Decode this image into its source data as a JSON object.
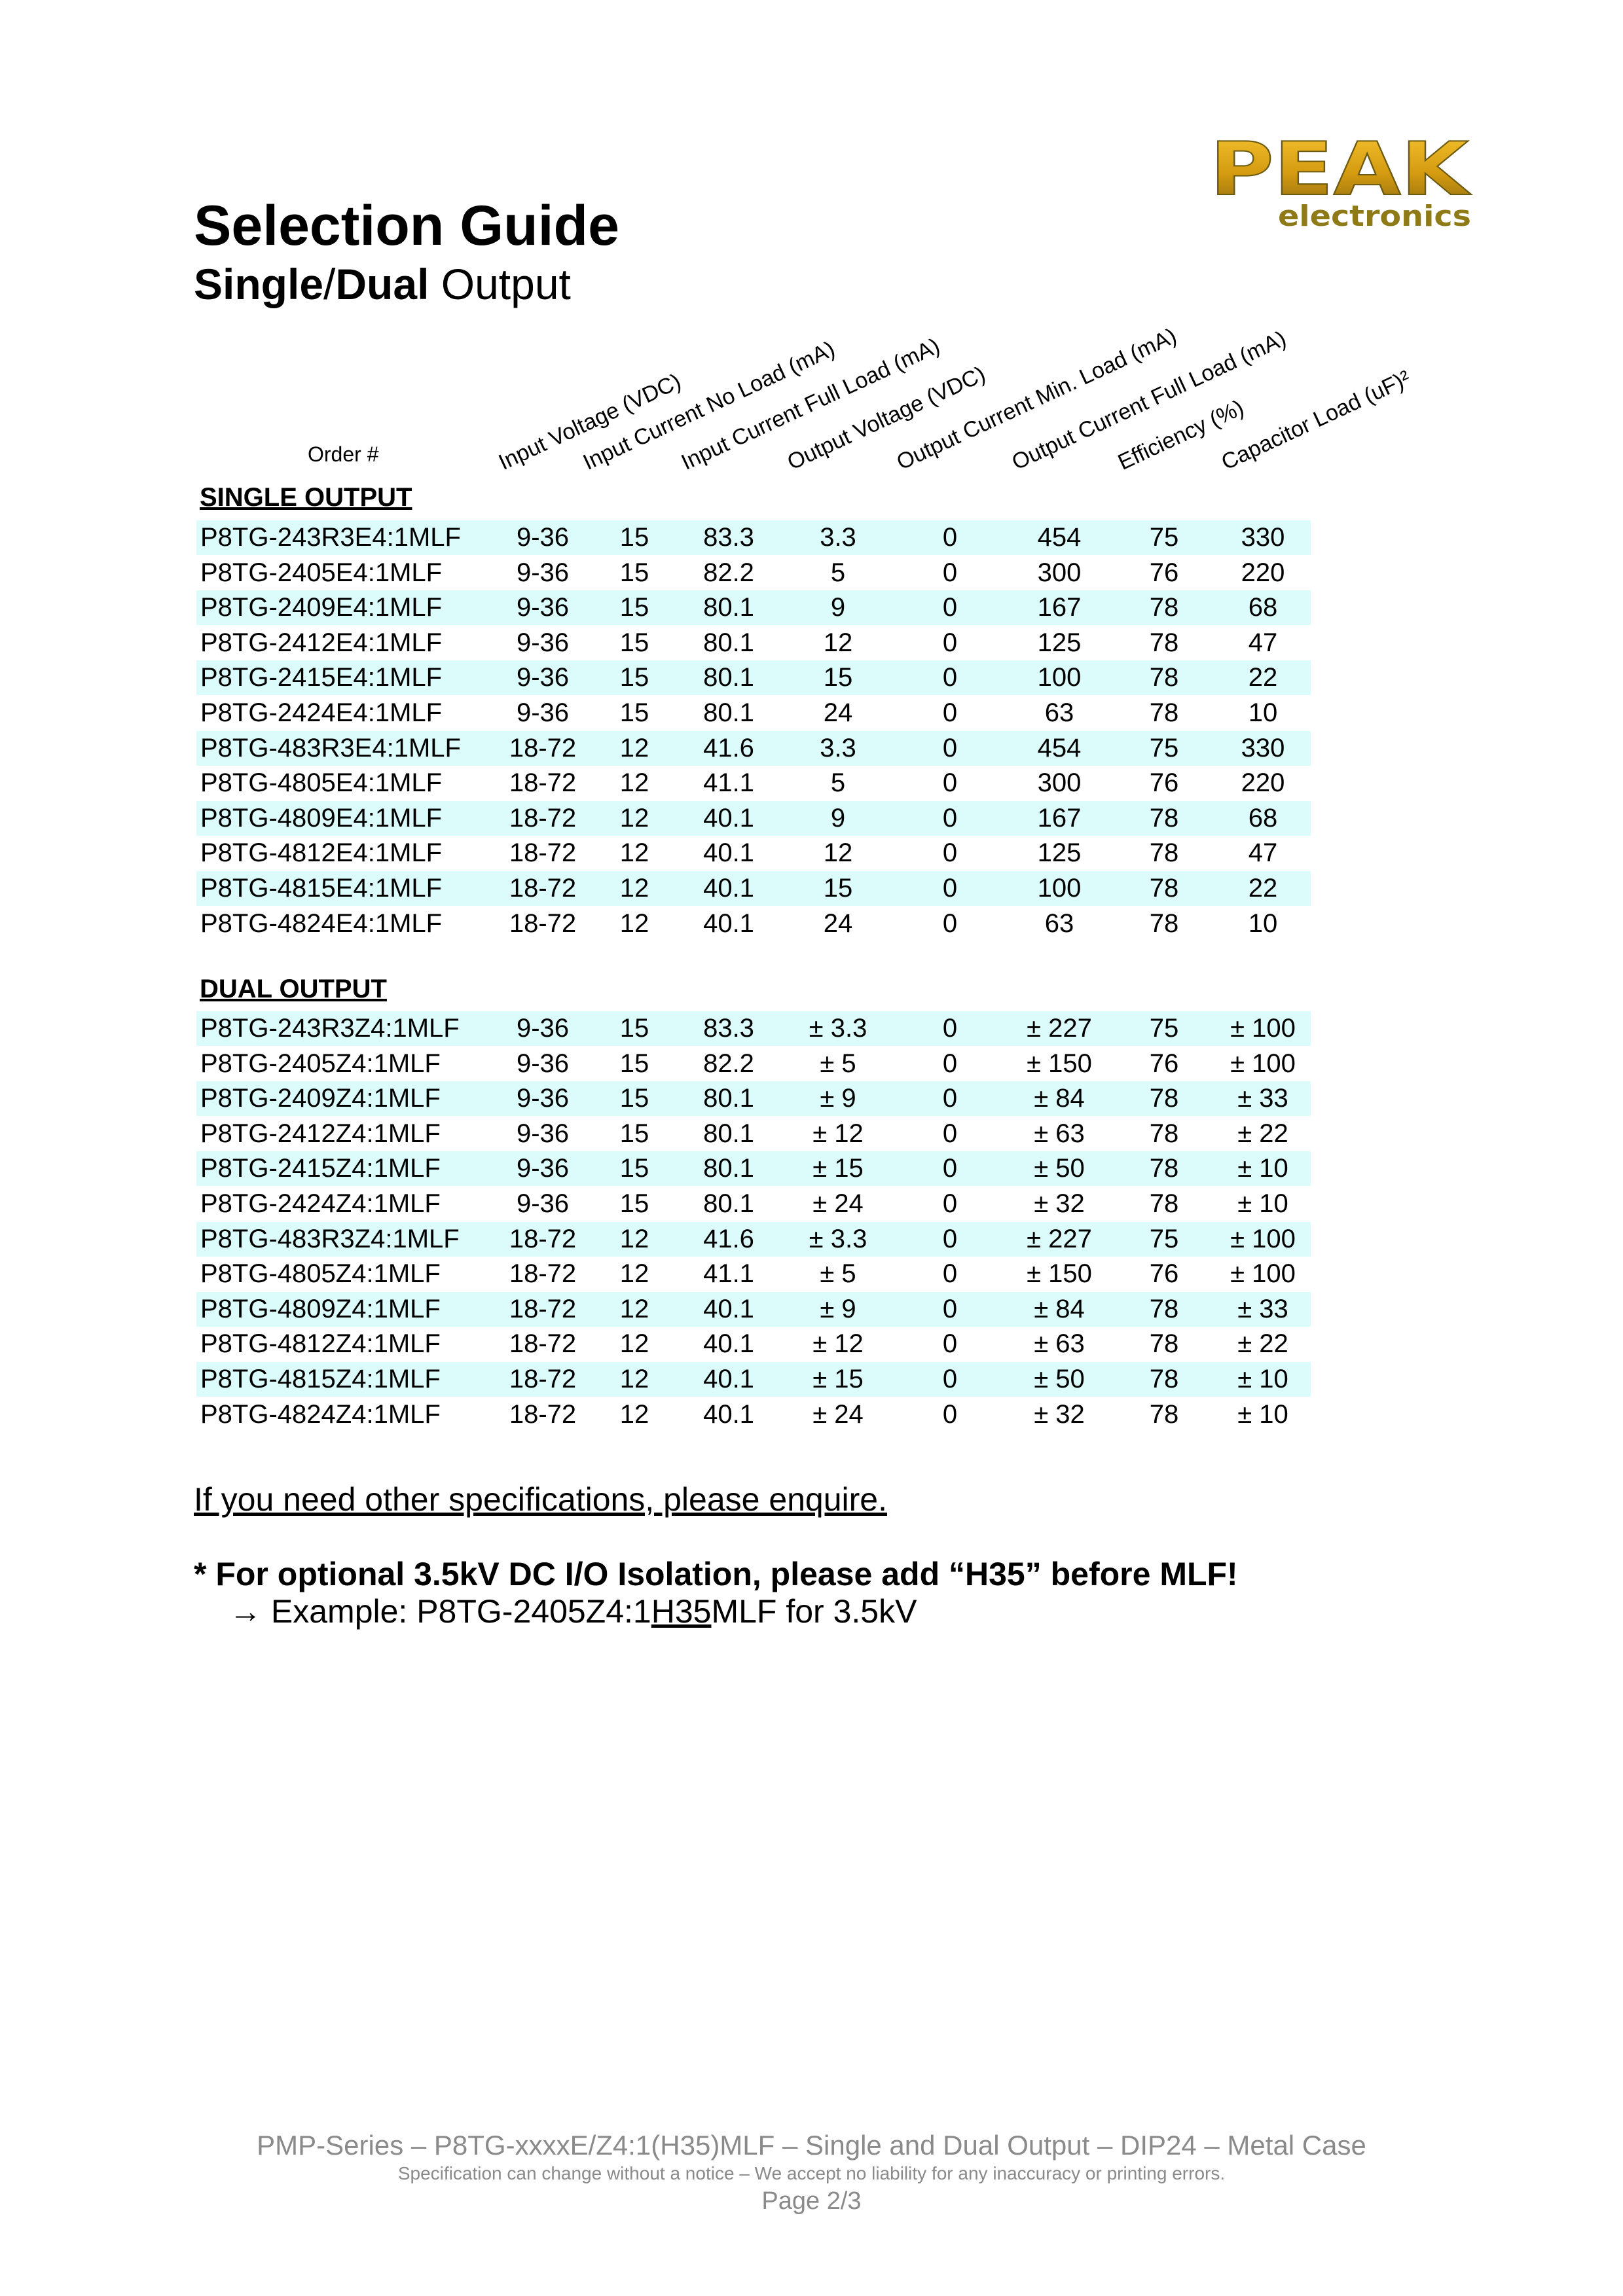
{
  "header": {
    "title": "Selection Guide",
    "subtitle_bold1": "Single",
    "subtitle_sep": "/",
    "subtitle_bold2": "Dual",
    "subtitle_rest": " Output",
    "logo_text": "PEAK",
    "logo_sub": "electronics",
    "brand_color": "#d4a017"
  },
  "table": {
    "order_header": "Order #",
    "columns": [
      "Input Voltage (VDC)",
      "Input Current No Load (mA)",
      "Input Current Full Load (mA)",
      "Output Voltage (VDC)",
      "Output Current Min. Load (mA)",
      "Output Current Full Load (mA)",
      "Efficiency (%)",
      "Capacitor Load (uF)²"
    ],
    "row_highlight_color": "#dcfbfb",
    "sections": [
      {
        "title": "SINGLE OUTPUT",
        "rows": [
          [
            "P8TG-243R3E4:1MLF",
            "9-36",
            "15",
            "83.3",
            "3.3",
            "0",
            "454",
            "75",
            "330"
          ],
          [
            "P8TG-2405E4:1MLF",
            "9-36",
            "15",
            "82.2",
            "5",
            "0",
            "300",
            "76",
            "220"
          ],
          [
            "P8TG-2409E4:1MLF",
            "9-36",
            "15",
            "80.1",
            "9",
            "0",
            "167",
            "78",
            "68"
          ],
          [
            "P8TG-2412E4:1MLF",
            "9-36",
            "15",
            "80.1",
            "12",
            "0",
            "125",
            "78",
            "47"
          ],
          [
            "P8TG-2415E4:1MLF",
            "9-36",
            "15",
            "80.1",
            "15",
            "0",
            "100",
            "78",
            "22"
          ],
          [
            "P8TG-2424E4:1MLF",
            "9-36",
            "15",
            "80.1",
            "24",
            "0",
            "63",
            "78",
            "10"
          ],
          [
            "P8TG-483R3E4:1MLF",
            "18-72",
            "12",
            "41.6",
            "3.3",
            "0",
            "454",
            "75",
            "330"
          ],
          [
            "P8TG-4805E4:1MLF",
            "18-72",
            "12",
            "41.1",
            "5",
            "0",
            "300",
            "76",
            "220"
          ],
          [
            "P8TG-4809E4:1MLF",
            "18-72",
            "12",
            "40.1",
            "9",
            "0",
            "167",
            "78",
            "68"
          ],
          [
            "P8TG-4812E4:1MLF",
            "18-72",
            "12",
            "40.1",
            "12",
            "0",
            "125",
            "78",
            "47"
          ],
          [
            "P8TG-4815E4:1MLF",
            "18-72",
            "12",
            "40.1",
            "15",
            "0",
            "100",
            "78",
            "22"
          ],
          [
            "P8TG-4824E4:1MLF",
            "18-72",
            "12",
            "40.1",
            "24",
            "0",
            "63",
            "78",
            "10"
          ]
        ]
      },
      {
        "title": "DUAL OUTPUT",
        "rows": [
          [
            "P8TG-243R3Z4:1MLF",
            "9-36",
            "15",
            "83.3",
            "± 3.3",
            "0",
            "± 227",
            "75",
            "± 100"
          ],
          [
            "P8TG-2405Z4:1MLF",
            "9-36",
            "15",
            "82.2",
            "± 5",
            "0",
            "± 150",
            "76",
            "± 100"
          ],
          [
            "P8TG-2409Z4:1MLF",
            "9-36",
            "15",
            "80.1",
            "± 9",
            "0",
            "± 84",
            "78",
            "± 33"
          ],
          [
            "P8TG-2412Z4:1MLF",
            "9-36",
            "15",
            "80.1",
            "± 12",
            "0",
            "± 63",
            "78",
            "± 22"
          ],
          [
            "P8TG-2415Z4:1MLF",
            "9-36",
            "15",
            "80.1",
            "± 15",
            "0",
            "± 50",
            "78",
            "± 10"
          ],
          [
            "P8TG-2424Z4:1MLF",
            "9-36",
            "15",
            "80.1",
            "± 24",
            "0",
            "± 32",
            "78",
            "± 10"
          ],
          [
            "P8TG-483R3Z4:1MLF",
            "18-72",
            "12",
            "41.6",
            "± 3.3",
            "0",
            "± 227",
            "75",
            "± 100"
          ],
          [
            "P8TG-4805Z4:1MLF",
            "18-72",
            "12",
            "41.1",
            "± 5",
            "0",
            "± 150",
            "76",
            "± 100"
          ],
          [
            "P8TG-4809Z4:1MLF",
            "18-72",
            "12",
            "40.1",
            "± 9",
            "0",
            "± 84",
            "78",
            "± 33"
          ],
          [
            "P8TG-4812Z4:1MLF",
            "18-72",
            "12",
            "40.1",
            "± 12",
            "0",
            "± 63",
            "78",
            "± 22"
          ],
          [
            "P8TG-4815Z4:1MLF",
            "18-72",
            "12",
            "40.1",
            "± 15",
            "0",
            "± 50",
            "78",
            "± 10"
          ],
          [
            "P8TG-4824Z4:1MLF",
            "18-72",
            "12",
            "40.1",
            "± 24",
            "0",
            "± 32",
            "78",
            "± 10"
          ]
        ]
      }
    ]
  },
  "notes": {
    "enquire": "If you need other specifications, please enquire.",
    "isolation": "* For optional 3.5kV DC I/O Isolation, please add “H35” before MLF!",
    "example_prefix": "→ Example: P8TG-2405Z4:1",
    "example_underlined": "H35",
    "example_suffix": "MLF for 3.5kV"
  },
  "footer": {
    "series": "PMP-Series – P8TG-xxxxE/Z4:1(H35)MLF – Single and Dual Output – DIP24 – Metal Case",
    "disclaimer": "Specification can change without a notice – We accept no liability for any inaccuracy or printing errors.",
    "page": "Page 2/3"
  }
}
